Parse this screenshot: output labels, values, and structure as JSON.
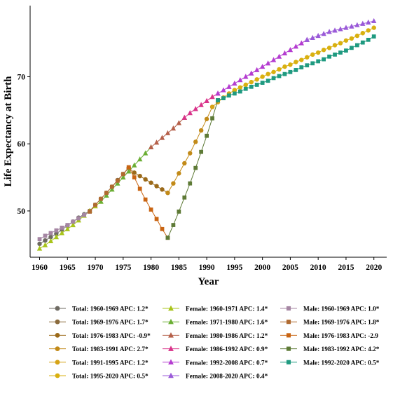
{
  "chart_data": {
    "type": "line",
    "xlabel": "Year",
    "ylabel": "Life Expectancy at Birth",
    "xlim": [
      1958.3,
      2022.3
    ],
    "ylim": [
      43.1,
      80.6
    ],
    "x_ticks": [
      1960,
      1965,
      1970,
      1975,
      1980,
      1985,
      1990,
      1995,
      2000,
      2005,
      2010,
      2015,
      2020
    ],
    "y_ticks": [
      50,
      60,
      70
    ],
    "grid": false,
    "legend_position": "bottom",
    "series": [
      {
        "name": "Total: 1960-1969 APC: 1.2*",
        "marker": "circle",
        "color": "#6e6a62",
        "x": [
          1960,
          1961,
          1962,
          1963,
          1964,
          1965,
          1966,
          1967,
          1968,
          1969
        ],
        "y": [
          45.1,
          45.6,
          46.1,
          46.6,
          47.2,
          47.8,
          48.4,
          49.0,
          49.5,
          50.0
        ]
      },
      {
        "name": "Total: 1969-1976 APC: 1.7*",
        "marker": "circle",
        "color": "#8a6a3c",
        "x": [
          1969,
          1970,
          1971,
          1972,
          1973,
          1974,
          1975,
          1976
        ],
        "y": [
          50.0,
          50.9,
          51.8,
          52.7,
          53.6,
          54.6,
          55.5,
          56.4
        ]
      },
      {
        "name": "Total: 1976-1983 APC: -0.9*",
        "marker": "circle",
        "color": "#9b6a1a",
        "x": [
          1976,
          1977,
          1978,
          1979,
          1980,
          1981,
          1982,
          1983
        ],
        "y": [
          56.4,
          55.7,
          55.2,
          54.7,
          54.2,
          53.7,
          53.2,
          52.7
        ]
      },
      {
        "name": "Total: 1983-1991 APC: 2.7*",
        "marker": "circle",
        "color": "#c28a18",
        "x": [
          1983,
          1984,
          1985,
          1986,
          1987,
          1988,
          1989,
          1990,
          1991
        ],
        "y": [
          52.7,
          54.1,
          55.6,
          57.1,
          58.6,
          60.3,
          62.0,
          63.7,
          65.5
        ]
      },
      {
        "name": "Total: 1991-1995 APC: 1.2*",
        "marker": "circle",
        "color": "#d6a316",
        "x": [
          1991,
          1992,
          1993,
          1994,
          1995
        ],
        "y": [
          65.5,
          66.2,
          66.9,
          67.5,
          68.0
        ]
      },
      {
        "name": "Total: 1995-2020 APC: 0.5*",
        "marker": "circle",
        "color": "#d9b010",
        "x": [
          1995,
          1996,
          1997,
          1998,
          1999,
          2000,
          2001,
          2002,
          2003,
          2004,
          2005,
          2006,
          2007,
          2008,
          2009,
          2010,
          2011,
          2012,
          2013,
          2014,
          2015,
          2016,
          2017,
          2018,
          2019,
          2020
        ],
        "y": [
          68.0,
          68.4,
          68.8,
          69.2,
          69.6,
          70.0,
          70.4,
          70.7,
          71.1,
          71.5,
          71.8,
          72.2,
          72.5,
          72.9,
          73.3,
          73.6,
          74.0,
          74.3,
          74.7,
          75.0,
          75.4,
          75.7,
          76.1,
          76.5,
          76.9,
          77.3
        ]
      },
      {
        "name": "Female: 1960-1971 APC: 1.4*",
        "marker": "triangle",
        "color": "#a8c41a",
        "x": [
          1960,
          1961,
          1962,
          1963,
          1964,
          1965,
          1966,
          1967,
          1968,
          1969,
          1970,
          1971
        ],
        "y": [
          44.4,
          44.9,
          45.5,
          46.1,
          46.7,
          47.3,
          47.9,
          48.6,
          49.3,
          50.0,
          50.7,
          51.4
        ]
      },
      {
        "name": "Female: 1971-1980 APC: 1.6*",
        "marker": "triangle",
        "color": "#6aae33",
        "x": [
          1971,
          1972,
          1973,
          1974,
          1975,
          1976,
          1977,
          1978,
          1979,
          1980
        ],
        "y": [
          51.4,
          52.3,
          53.2,
          54.1,
          55.0,
          55.9,
          56.8,
          57.7,
          58.6,
          59.5
        ]
      },
      {
        "name": "Female: 1980-1986 APC: 1.2*",
        "marker": "triangle",
        "color": "#b5604a",
        "x": [
          1980,
          1981,
          1982,
          1983,
          1984,
          1985,
          1986
        ],
        "y": [
          59.5,
          60.2,
          60.9,
          61.6,
          62.3,
          63.1,
          63.9
        ]
      },
      {
        "name": "Female: 1986-1992 APC: 0.9*",
        "marker": "triangle",
        "color": "#d9338a",
        "x": [
          1986,
          1987,
          1988,
          1989,
          1990,
          1991,
          1992
        ],
        "y": [
          63.9,
          64.6,
          65.2,
          65.8,
          66.4,
          67.0,
          67.5
        ]
      },
      {
        "name": "Female: 1992-2008 APC: 0.7*",
        "marker": "triangle",
        "color": "#b43cd0",
        "x": [
          1992,
          1993,
          1994,
          1995,
          1996,
          1997,
          1998,
          1999,
          2000,
          2001,
          2002,
          2003,
          2004,
          2005,
          2006,
          2007,
          2008
        ],
        "y": [
          67.5,
          68.0,
          68.5,
          69.0,
          69.5,
          70.0,
          70.5,
          71.0,
          71.5,
          72.0,
          72.5,
          73.0,
          73.5,
          74.0,
          74.5,
          75.0,
          75.5
        ]
      },
      {
        "name": "Female: 2008-2020 APC: 0.4*",
        "marker": "triangle",
        "color": "#9a5ad8",
        "x": [
          2008,
          2009,
          2010,
          2011,
          2012,
          2013,
          2014,
          2015,
          2016,
          2017,
          2018,
          2019,
          2020
        ],
        "y": [
          75.5,
          75.8,
          76.1,
          76.4,
          76.7,
          76.9,
          77.1,
          77.3,
          77.5,
          77.7,
          77.9,
          78.1,
          78.3
        ]
      },
      {
        "name": "Male: 1960-1969 APC: 1.0*",
        "marker": "square",
        "color": "#a586a3",
        "x": [
          1960,
          1961,
          1962,
          1963,
          1964,
          1965,
          1966,
          1967,
          1968,
          1969
        ],
        "y": [
          45.8,
          46.3,
          46.7,
          47.1,
          47.5,
          47.9,
          48.4,
          48.9,
          49.4,
          49.9
        ]
      },
      {
        "name": "Male: 1969-1976 APC: 1.8*",
        "marker": "square",
        "color": "#b06a30",
        "x": [
          1969,
          1970,
          1971,
          1972,
          1973,
          1974,
          1975,
          1976
        ],
        "y": [
          49.9,
          50.9,
          51.8,
          52.7,
          53.6,
          54.5,
          55.5,
          56.5
        ]
      },
      {
        "name": "Male: 1976-1983 APC: -2.9",
        "marker": "square",
        "color": "#c96412",
        "x": [
          1976,
          1977,
          1978,
          1979,
          1980,
          1981,
          1982,
          1983
        ],
        "y": [
          56.5,
          55.0,
          53.3,
          51.7,
          50.2,
          48.8,
          47.3,
          46.0
        ]
      },
      {
        "name": "Male: 1983-1992 APC: 4.2*",
        "marker": "square",
        "color": "#5e7a36",
        "x": [
          1983,
          1984,
          1985,
          1986,
          1987,
          1988,
          1989,
          1990,
          1991,
          1992
        ],
        "y": [
          46.0,
          47.9,
          49.9,
          52.0,
          54.1,
          56.4,
          58.8,
          61.2,
          63.8,
          66.5
        ]
      },
      {
        "name": "Male: 1992-2020 APC: 0.5*",
        "marker": "square",
        "color": "#1f9a80",
        "x": [
          1992,
          1993,
          1994,
          1995,
          1996,
          1997,
          1998,
          1999,
          2000,
          2001,
          2002,
          2003,
          2004,
          2005,
          2006,
          2007,
          2008,
          2009,
          2010,
          2011,
          2012,
          2013,
          2014,
          2015,
          2016,
          2017,
          2018,
          2019,
          2020
        ],
        "y": [
          66.5,
          66.8,
          67.2,
          67.5,
          67.8,
          68.2,
          68.5,
          68.8,
          69.1,
          69.4,
          69.8,
          70.1,
          70.4,
          70.7,
          71.0,
          71.4,
          71.7,
          72.0,
          72.3,
          72.6,
          73.0,
          73.3,
          73.6,
          73.9,
          74.3,
          74.7,
          75.1,
          75.5,
          76.0
        ]
      }
    ]
  }
}
